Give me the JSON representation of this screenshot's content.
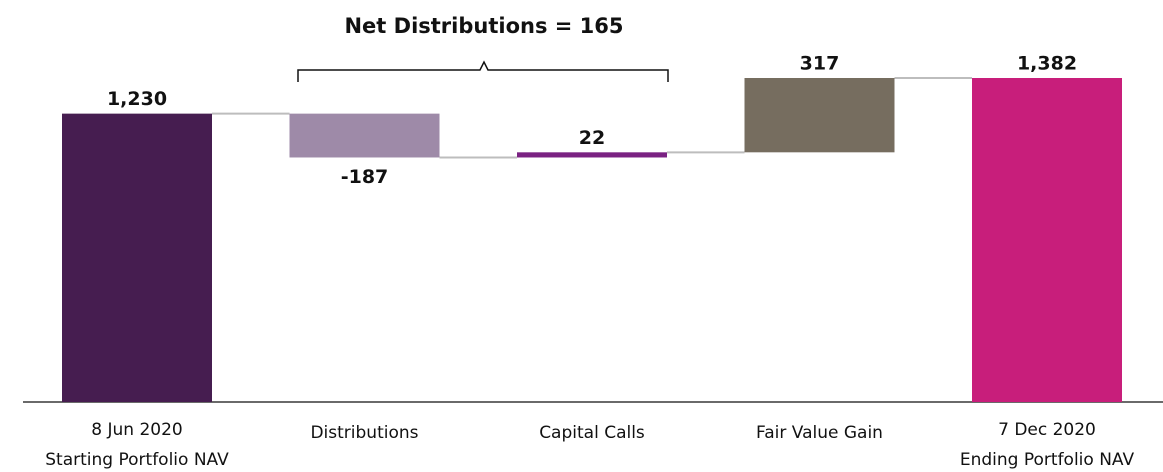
{
  "chart_data": {
    "type": "waterfall",
    "annotation": "Net Distributions = 165",
    "categories": [
      [
        "8 Jun 2020",
        "Starting Portfolio NAV"
      ],
      [
        "Distributions"
      ],
      [
        "Capital Calls"
      ],
      [
        "Fair Value Gain"
      ],
      [
        "7 Dec 2020",
        "Ending Portfolio NAV"
      ]
    ],
    "measure": [
      "total",
      "relative",
      "relative",
      "relative",
      "total"
    ],
    "values": [
      1230,
      -187,
      22,
      317,
      1382
    ],
    "value_labels": [
      "1,230",
      "-187",
      "22",
      "317",
      "1,382"
    ],
    "colors": [
      "#461d50",
      "#9e8aa8",
      "#7a2282",
      "#766d5f",
      "#c81e7b"
    ],
    "connector_color": "#bdbdbd"
  }
}
